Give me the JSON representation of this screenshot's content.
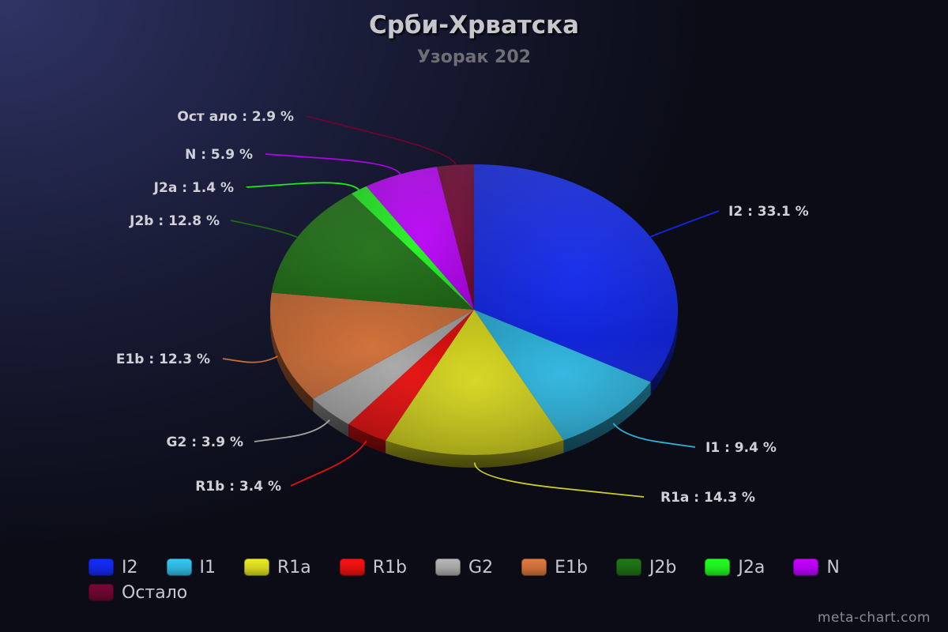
{
  "chart_data": {
    "type": "pie",
    "title": "Срби-Хрватска",
    "subtitle": "Узорак 202",
    "slices": [
      {
        "label": "I2",
        "value": 33.1,
        "color": "#1227e0",
        "display": "I2 : 33.1 %"
      },
      {
        "label": "I1",
        "value": 9.4,
        "color": "#2fb0d8",
        "display": "I1 : 9.4 %"
      },
      {
        "label": "R1a",
        "value": 14.3,
        "color": "#cfcf20",
        "display": "R1a : 14.3 %"
      },
      {
        "label": "R1b",
        "value": 3.4,
        "color": "#dd1010",
        "display": "R1b : 3.4 %"
      },
      {
        "label": "G2",
        "value": 3.9,
        "color": "#a2a2a2",
        "display": "G2 : 3.9 %"
      },
      {
        "label": "E1b",
        "value": 12.3,
        "color": "#c86c38",
        "display": "E1b : 12.3 %"
      },
      {
        "label": "J2b",
        "value": 12.8,
        "color": "#1d6a14",
        "display": "J2b : 12.8 %"
      },
      {
        "label": "J2a",
        "value": 1.4,
        "color": "#1ee81e",
        "display": "J2a : 1.4 %"
      },
      {
        "label": "N",
        "value": 5.9,
        "color": "#b000ec",
        "display": "N : 5.9 %"
      },
      {
        "label": "Остало",
        "value": 2.9,
        "color": "#6a0630",
        "display": "Ост ало : 2.9 %"
      }
    ],
    "legend_position": "bottom-left"
  },
  "watermark": "meta-chart.com"
}
